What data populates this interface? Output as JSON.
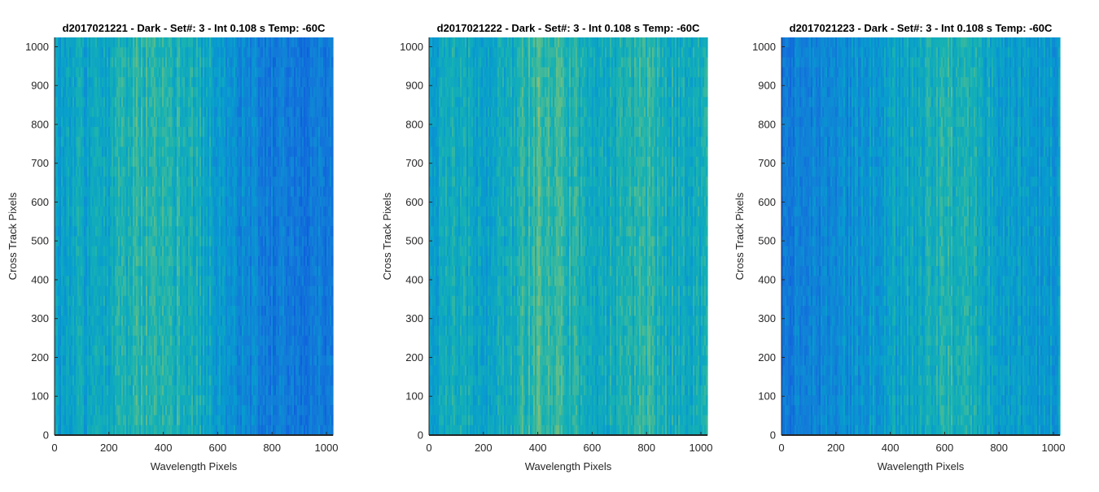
{
  "chart_data": [
    {
      "type": "heatmap",
      "title": "d2017021221 - Dark - Set#: 3 - Int 0.108 s Temp: -60C",
      "xlabel": "Wavelength Pixels",
      "ylabel": "Cross Track Pixels",
      "xlim": [
        0,
        1024
      ],
      "ylim": [
        0,
        1024
      ],
      "x_ticks": [
        0,
        200,
        400,
        600,
        800,
        1000
      ],
      "y_ticks": [
        0,
        100,
        200,
        300,
        400,
        500,
        600,
        700,
        800,
        900,
        1000
      ],
      "colormap": "parula",
      "intensity_profile": {
        "x": [
          0,
          100,
          200,
          300,
          400,
          500,
          600,
          700,
          800,
          900,
          1000,
          1024
        ],
        "level": [
          0.48,
          0.5,
          0.52,
          0.6,
          0.62,
          0.55,
          0.48,
          0.35,
          0.3,
          0.28,
          0.3,
          0.3
        ]
      }
    },
    {
      "type": "heatmap",
      "title": "d2017021222 - Dark - Set#: 3 - Int 0.108 s Temp: -60C",
      "xlabel": "Wavelength Pixels",
      "ylabel": "Cross Track Pixels",
      "xlim": [
        0,
        1024
      ],
      "ylim": [
        0,
        1024
      ],
      "x_ticks": [
        0,
        200,
        400,
        600,
        800,
        1000
      ],
      "y_ticks": [
        0,
        100,
        200,
        300,
        400,
        500,
        600,
        700,
        800,
        900,
        1000
      ],
      "colormap": "parula",
      "intensity_profile": {
        "x": [
          0,
          100,
          200,
          300,
          400,
          500,
          600,
          700,
          800,
          900,
          1000,
          1024
        ],
        "level": [
          0.5,
          0.52,
          0.5,
          0.55,
          0.66,
          0.6,
          0.54,
          0.55,
          0.6,
          0.55,
          0.52,
          0.52
        ]
      }
    },
    {
      "type": "heatmap",
      "title": "d2017021223 - Dark - Set#: 3 - Int 0.108 s Temp: -60C",
      "xlabel": "Wavelength Pixels",
      "ylabel": "Cross Track Pixels",
      "xlim": [
        0,
        1024
      ],
      "ylim": [
        0,
        1024
      ],
      "x_ticks": [
        0,
        200,
        400,
        600,
        800,
        1000
      ],
      "y_ticks": [
        0,
        100,
        200,
        300,
        400,
        500,
        600,
        700,
        800,
        900,
        1000
      ],
      "colormap": "parula",
      "intensity_profile": {
        "x": [
          0,
          100,
          200,
          300,
          400,
          500,
          600,
          700,
          800,
          900,
          1000,
          1024
        ],
        "level": [
          0.3,
          0.32,
          0.35,
          0.42,
          0.48,
          0.52,
          0.6,
          0.55,
          0.48,
          0.45,
          0.45,
          0.45
        ]
      }
    }
  ]
}
